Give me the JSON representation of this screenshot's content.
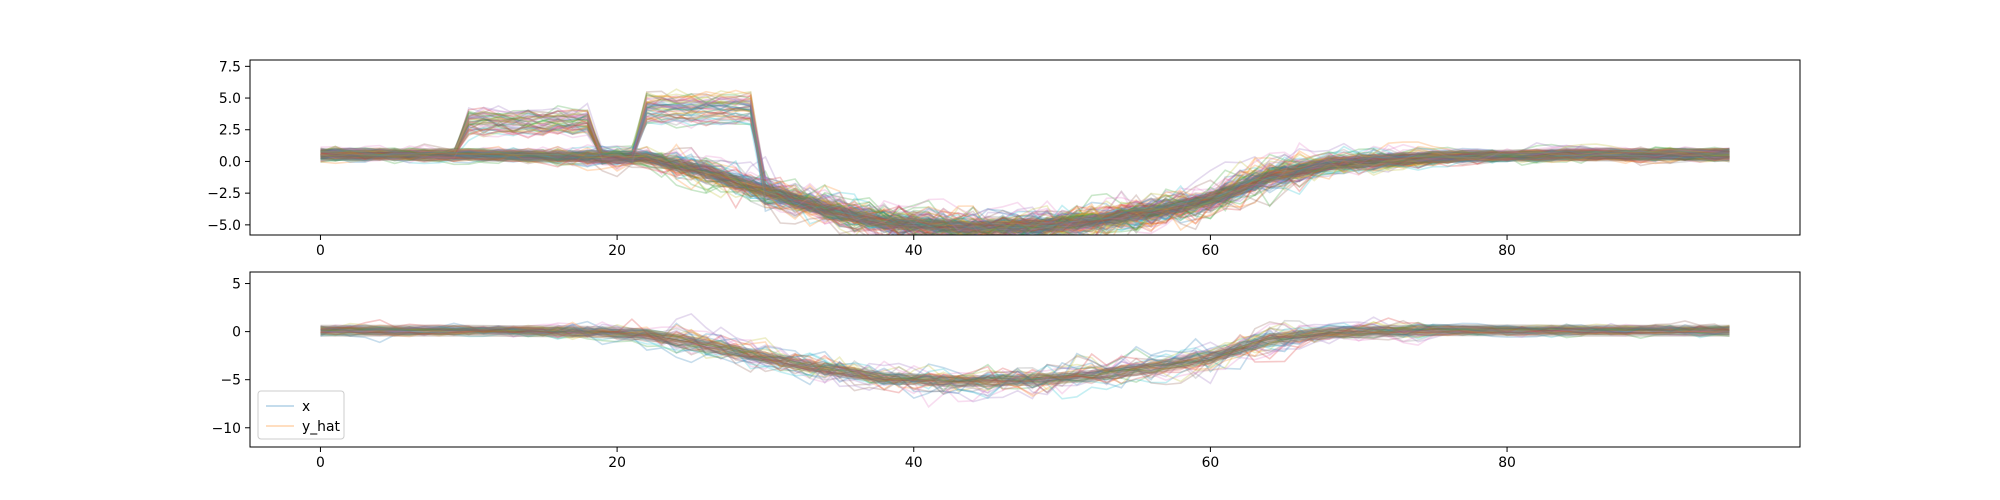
{
  "chart_data": [
    {
      "type": "line",
      "title": "",
      "xlabel": "",
      "ylabel": "",
      "xlim": [
        -4.75,
        99.75
      ],
      "ylim": [
        -5.8,
        8.0
      ],
      "x_ticks": [
        0,
        20,
        40,
        60,
        80
      ],
      "y_ticks": [
        -5.0,
        -2.5,
        0.0,
        2.5,
        5.0,
        7.5
      ],
      "y_tick_labels": [
        "−5.0",
        "−2.5",
        "0.0",
        "2.5",
        "5.0",
        "7.5"
      ],
      "x_count": 96,
      "line_alpha": 0.25,
      "grid": false,
      "legend": false,
      "num_series": 150,
      "base_profile": {
        "x": [
          0,
          10,
          18,
          22,
          26,
          30,
          34,
          38,
          43,
          48,
          52,
          56,
          60,
          64,
          68,
          75,
          85,
          95
        ],
        "y": [
          0.55,
          0.55,
          0.4,
          0.3,
          -0.8,
          -2.3,
          -3.8,
          -4.8,
          -5.2,
          -5.1,
          -4.7,
          -4.0,
          -3.0,
          -1.2,
          -0.2,
          0.35,
          0.55,
          0.55
        ]
      },
      "anomaly_bands": [
        {
          "x_start": 10,
          "x_end": 18,
          "level": 3.3
        },
        {
          "x_start": 22,
          "x_end": 29,
          "level": 4.4
        }
      ],
      "spread": 2.6
    },
    {
      "type": "line",
      "title": "",
      "xlabel": "",
      "ylabel": "",
      "xlim": [
        -4.75,
        99.75
      ],
      "ylim": [
        -12.0,
        6.2
      ],
      "x_ticks": [
        0,
        20,
        40,
        60,
        80
      ],
      "y_ticks": [
        -10,
        -5,
        0,
        5
      ],
      "y_tick_labels": [
        "−10",
        "−5",
        "0",
        "5"
      ],
      "x_count": 96,
      "line_alpha": 0.25,
      "grid": false,
      "legend": "lower-left",
      "num_series": 45,
      "base_profile": {
        "x": [
          0,
          10,
          18,
          22,
          26,
          30,
          34,
          38,
          43,
          48,
          52,
          56,
          60,
          64,
          68,
          75,
          85,
          95
        ],
        "y": [
          0.1,
          0.1,
          0.0,
          -0.3,
          -1.4,
          -2.7,
          -3.9,
          -4.8,
          -5.2,
          -5.0,
          -4.6,
          -3.8,
          -2.7,
          -0.8,
          -0.1,
          0.15,
          0.1,
          0.1
        ]
      },
      "spread": 3.2,
      "series": [
        {
          "name": "x",
          "color": "#1f77b4"
        },
        {
          "name": "y_hat",
          "color": "#ff7f0e"
        }
      ]
    }
  ],
  "palette": [
    "#1f77b4",
    "#ff7f0e",
    "#2ca02c",
    "#d62728",
    "#9467bd",
    "#8c564b",
    "#e377c2",
    "#7f7f7f",
    "#bcbd22",
    "#17becf"
  ]
}
